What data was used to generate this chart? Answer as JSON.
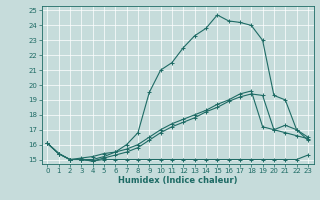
{
  "xlabel": "Humidex (Indice chaleur)",
  "xlim": [
    -0.5,
    23.5
  ],
  "ylim": [
    14.7,
    25.3
  ],
  "xticks": [
    0,
    1,
    2,
    3,
    4,
    5,
    6,
    7,
    8,
    9,
    10,
    11,
    12,
    13,
    14,
    15,
    16,
    17,
    18,
    19,
    20,
    21,
    22,
    23
  ],
  "yticks": [
    15,
    16,
    17,
    18,
    19,
    20,
    21,
    22,
    23,
    24,
    25
  ],
  "bg_color": "#c6dcdb",
  "line_color": "#1e6b65",
  "line1_y": [
    16.1,
    15.4,
    15.0,
    15.0,
    15.0,
    15.2,
    15.5,
    16.0,
    16.8,
    19.5,
    21.0,
    21.5,
    22.5,
    23.3,
    23.8,
    24.7,
    24.3,
    24.2,
    24.0,
    23.0,
    19.3,
    19.0,
    17.0,
    16.3
  ],
  "line2_y": [
    16.1,
    15.4,
    15.0,
    15.0,
    14.9,
    15.1,
    15.3,
    15.5,
    15.8,
    16.3,
    16.8,
    17.2,
    17.5,
    17.8,
    18.2,
    18.5,
    18.9,
    19.2,
    19.4,
    19.3,
    17.0,
    16.8,
    16.6,
    16.4
  ],
  "line3_y": [
    16.1,
    15.4,
    15.0,
    15.0,
    14.9,
    15.0,
    15.0,
    15.0,
    15.0,
    15.0,
    15.0,
    15.0,
    15.0,
    15.0,
    15.0,
    15.0,
    15.0,
    15.0,
    15.0,
    15.0,
    15.0,
    15.0,
    15.0,
    15.3
  ],
  "line4_y": [
    16.1,
    15.4,
    15.0,
    15.1,
    15.2,
    15.4,
    15.5,
    15.7,
    16.0,
    16.5,
    17.0,
    17.4,
    17.7,
    18.0,
    18.3,
    18.7,
    19.0,
    19.4,
    19.6,
    17.2,
    17.0,
    17.3,
    17.0,
    16.5
  ],
  "marker": "+",
  "marker_size": 3,
  "linewidth": 0.8,
  "tick_fontsize": 5,
  "xlabel_fontsize": 6,
  "grid_color": "#ffffff",
  "grid_lw": 0.5
}
